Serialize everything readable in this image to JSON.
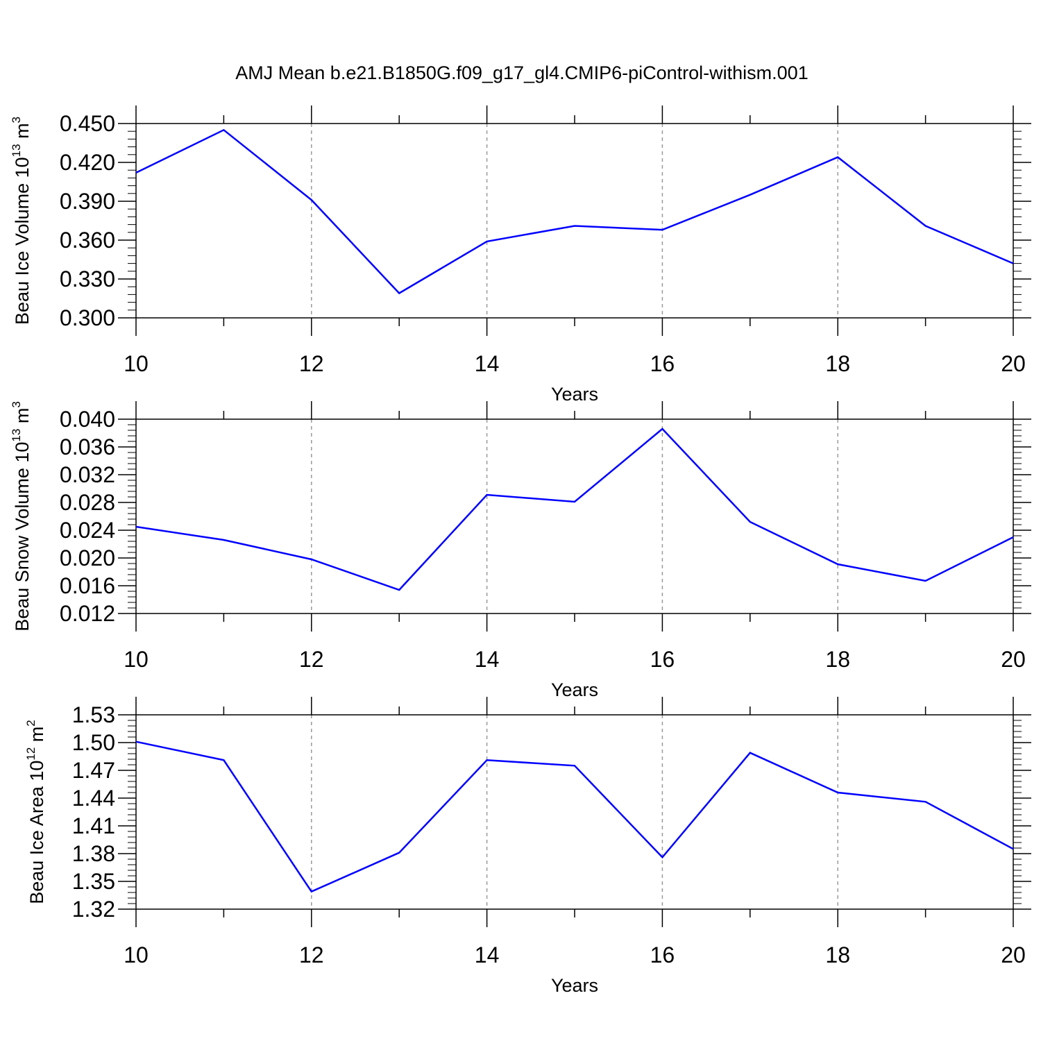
{
  "title": "AMJ Mean b.e21.B1850G.f09_g17_gl4.CMIP6-piControl-withism.001",
  "chart_data": [
    {
      "type": "line",
      "ylabel": {
        "prefix": "Beau Ice Volume 10",
        "exp": "13",
        "unit": " m",
        "unit_exp": "3"
      },
      "xlabel": "Years",
      "xlim": [
        10,
        20
      ],
      "ylim": [
        0.3,
        0.45
      ],
      "x_ticks": [
        "10",
        "12",
        "14",
        "16",
        "18",
        "20"
      ],
      "y_ticks": [
        "0.300",
        "0.330",
        "0.360",
        "0.390",
        "0.420",
        "0.450"
      ],
      "grid": "dashed vertical at major x ticks",
      "line_color": "#0000ff",
      "series": [
        {
          "x": [
            10,
            11,
            12,
            13,
            14,
            15,
            16,
            17,
            18,
            19,
            20
          ],
          "y": [
            0.412,
            0.445,
            0.391,
            0.319,
            0.359,
            0.371,
            0.368,
            0.395,
            0.424,
            0.371,
            0.342
          ]
        }
      ]
    },
    {
      "type": "line",
      "ylabel": {
        "prefix": "Beau Snow Volume 10",
        "exp": "13",
        "unit": " m",
        "unit_exp": "3"
      },
      "xlabel": "Years",
      "xlim": [
        10,
        20
      ],
      "ylim": [
        0.012,
        0.04
      ],
      "x_ticks": [
        "10",
        "12",
        "14",
        "16",
        "18",
        "20"
      ],
      "y_ticks": [
        "0.012",
        "0.016",
        "0.020",
        "0.024",
        "0.028",
        "0.032",
        "0.036",
        "0.040"
      ],
      "grid": "dashed vertical at major x ticks",
      "line_color": "#0000ff",
      "series": [
        {
          "x": [
            10,
            11,
            12,
            13,
            14,
            15,
            16,
            17,
            18,
            19,
            20
          ],
          "y": [
            0.0245,
            0.0226,
            0.0198,
            0.0154,
            0.0291,
            0.0281,
            0.0386,
            0.0252,
            0.0191,
            0.0167,
            0.023
          ]
        }
      ]
    },
    {
      "type": "line",
      "ylabel": {
        "prefix": "Beau Ice Area 10",
        "exp": "12",
        "unit": " m",
        "unit_exp": "2"
      },
      "xlabel": "Years",
      "xlim": [
        10,
        20
      ],
      "ylim": [
        1.32,
        1.53
      ],
      "x_ticks": [
        "10",
        "12",
        "14",
        "16",
        "18",
        "20"
      ],
      "y_ticks": [
        "1.32",
        "1.35",
        "1.38",
        "1.41",
        "1.44",
        "1.47",
        "1.50",
        "1.53"
      ],
      "grid": "dashed vertical at major x ticks",
      "line_color": "#0000ff",
      "series": [
        {
          "x": [
            10,
            11,
            12,
            13,
            14,
            15,
            16,
            17,
            18,
            19,
            20
          ],
          "y": [
            1.501,
            1.481,
            1.339,
            1.381,
            1.481,
            1.475,
            1.376,
            1.489,
            1.446,
            1.436,
            1.385
          ]
        }
      ]
    }
  ]
}
